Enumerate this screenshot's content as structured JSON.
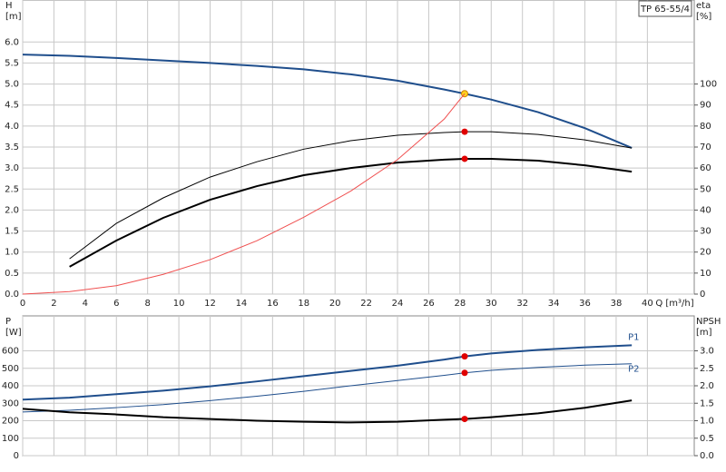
{
  "chart_data": [
    {
      "type": "line",
      "title": "TP 65-55/4",
      "y_label": "H",
      "y_unit": "[m]",
      "y2_label": "eta",
      "y2_unit": "[%]",
      "x_label": "Q [m³/h]",
      "xlim": [
        0,
        43
      ],
      "xticks": [
        0,
        2,
        4,
        6,
        8,
        10,
        12,
        14,
        16,
        18,
        20,
        22,
        24,
        26,
        28,
        30,
        32,
        34,
        36,
        38,
        40
      ],
      "ylim": [
        0,
        7
      ],
      "yticks": [
        {
          "value": 0,
          "label": "0.0"
        },
        0.5,
        {
          "value": 1,
          "label": "1.0"
        },
        1.5,
        {
          "value": 2,
          "label": "2.0"
        },
        2.5,
        {
          "value": 3,
          "label": "3.0"
        },
        3.5,
        {
          "value": 4,
          "label": "4.0"
        },
        4.5,
        {
          "value": 5,
          "label": "5.0"
        },
        5.5,
        {
          "value": 6,
          "label": "6.0"
        }
      ],
      "y2lim": [
        0,
        140
      ],
      "y2ticks": [
        0,
        10,
        20,
        30,
        40,
        50,
        60,
        70,
        80,
        90,
        100
      ],
      "grid": true,
      "series": [
        {
          "color": "#1f4e8c",
          "width": 2,
          "x": [
            0,
            3,
            6,
            9,
            12,
            15,
            18,
            21,
            24,
            27,
            28.3,
            30,
            33,
            36,
            39
          ],
          "values": [
            5.7,
            5.67,
            5.62,
            5.56,
            5.5,
            5.43,
            5.35,
            5.23,
            5.08,
            4.87,
            4.77,
            4.63,
            4.33,
            3.95,
            3.48
          ],
          "marker": {
            "x": 28.3,
            "value": 4.77,
            "color": "#ffd21f"
          }
        },
        {
          "color": "#000000",
          "width": 1,
          "axis": "y2",
          "x": [
            3,
            6,
            9,
            12,
            15,
            18,
            21,
            24,
            27,
            28.3,
            30,
            33,
            36,
            39
          ],
          "values": [
            16.8,
            33.7,
            45.8,
            55.7,
            63,
            69,
            73,
            75.6,
            76.9,
            77.3,
            77.3,
            76,
            73.4,
            69.5
          ],
          "marker": {
            "x": 28.3,
            "value": 77.3,
            "color": "#e00000"
          }
        },
        {
          "color": "#000000",
          "width": 2,
          "axis": "y2",
          "x": [
            3,
            6,
            9,
            12,
            15,
            18,
            21,
            24,
            27,
            28.3,
            30,
            33,
            36,
            39
          ],
          "values": [
            13,
            25.5,
            36.3,
            44.9,
            51.4,
            56.6,
            60,
            62.6,
            64,
            64.4,
            64.4,
            63.5,
            61.3,
            58.3
          ],
          "marker": {
            "x": 28.3,
            "value": 64.4,
            "color": "#e00000"
          }
        },
        {
          "color": "#f05050",
          "width": 1,
          "x": [
            0,
            3,
            6,
            9,
            12,
            15,
            18,
            21,
            24,
            27,
            28.3
          ],
          "values": [
            0,
            0.06,
            0.2,
            0.47,
            0.82,
            1.27,
            1.83,
            2.45,
            3.2,
            4.17,
            4.77
          ]
        }
      ]
    },
    {
      "type": "line",
      "y_label": "P",
      "y_unit": "[W]",
      "y2_label": "NPSH",
      "y2_unit": "[m]",
      "xlim": [
        0,
        43
      ],
      "xticks": [
        0,
        2,
        4,
        6,
        8,
        10,
        12,
        14,
        16,
        18,
        20,
        22,
        24,
        26,
        28,
        30,
        32,
        34,
        36,
        38,
        40
      ],
      "ylim": [
        0,
        800
      ],
      "yticks": [
        0,
        100,
        200,
        300,
        400,
        500,
        600
      ],
      "y2lim": [
        0,
        4
      ],
      "y2ticks": [
        {
          "value": 0,
          "label": "0.0"
        },
        0.5,
        {
          "value": 1,
          "label": "1.0"
        },
        1.5,
        {
          "value": 2,
          "label": "2.0"
        },
        2.5,
        {
          "value": 3,
          "label": "3.0"
        }
      ],
      "grid": true,
      "series": [
        {
          "name": "P1",
          "color": "#1f4e8c",
          "width": 2,
          "x": [
            0,
            3,
            6,
            9,
            12,
            15,
            18,
            21,
            24,
            27,
            28.3,
            30,
            33,
            36,
            39
          ],
          "values": [
            321,
            332,
            352,
            372,
            397,
            425,
            455,
            485,
            515,
            550,
            568,
            585,
            605,
            620,
            632
          ],
          "marker": {
            "x": 28.3,
            "value": 568,
            "color": "#e00000"
          }
        },
        {
          "name": "P2",
          "color": "#1f4e8c",
          "width": 1,
          "x": [
            0,
            3,
            6,
            9,
            12,
            15,
            18,
            21,
            24,
            27,
            28.3,
            30,
            33,
            36,
            39
          ],
          "values": [
            250,
            260,
            275,
            292,
            315,
            340,
            368,
            400,
            430,
            460,
            474,
            488,
            505,
            518,
            526
          ],
          "marker": {
            "x": 28.3,
            "value": 474,
            "color": "#e00000"
          }
        },
        {
          "color": "#000000",
          "width": 2,
          "axis": "y2",
          "x": [
            0,
            3,
            6,
            9,
            12,
            15,
            18,
            21,
            24,
            27,
            28.3,
            30,
            33,
            36,
            39
          ],
          "values": [
            1.34,
            1.24,
            1.18,
            1.1,
            1.05,
            1.0,
            0.97,
            0.95,
            0.97,
            1.03,
            1.05,
            1.1,
            1.21,
            1.37,
            1.58
          ],
          "marker": {
            "x": 28.3,
            "value": 1.05,
            "color": "#e00000"
          }
        }
      ]
    }
  ]
}
